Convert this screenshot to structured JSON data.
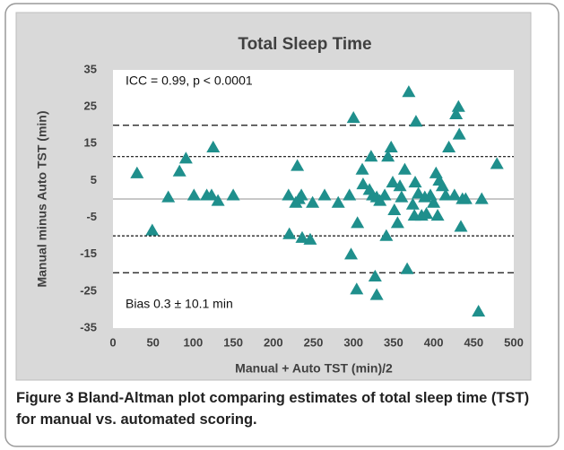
{
  "chart_data": {
    "type": "scatter",
    "title": "Total Sleep Time",
    "x_label": "Manual + Auto TST (min)/2",
    "y_label": "Manual minus Auto TST (min)",
    "annotations": [
      "ICC = 0.99, p < 0.0001",
      "Bias 0.3 ± 10.1 min"
    ],
    "xlim": [
      0,
      500
    ],
    "ylim": [
      -35,
      35
    ],
    "xticks": [
      0,
      50,
      100,
      150,
      200,
      250,
      300,
      350,
      400,
      450,
      500
    ],
    "yticks": [
      -35,
      -25,
      -15,
      -5,
      5,
      15,
      25,
      35
    ],
    "reference_lines": [
      {
        "value": 20,
        "style": "long-dash"
      },
      {
        "value": 11.5,
        "style": "short-dash"
      },
      {
        "value": 0,
        "style": "solid"
      },
      {
        "value": -10,
        "style": "short-dash"
      },
      {
        "value": -20,
        "style": "long-dash"
      }
    ],
    "series": [
      {
        "color": "#1f8f8c",
        "x": [
          30,
          49,
          69,
          83,
          91,
          101,
          117,
          123,
          125,
          131,
          150,
          219,
          220,
          236,
          246,
          230,
          228,
          232,
          235,
          249,
          264,
          281,
          295,
          297,
          300,
          304,
          305,
          311,
          312,
          320,
          322,
          324,
          329,
          327,
          329,
          333,
          339,
          341,
          343,
          347,
          349,
          351,
          355,
          358,
          360,
          364,
          367,
          369,
          374,
          376,
          377,
          378,
          381,
          385,
          389,
          391,
          396,
          400,
          403,
          405,
          407,
          411,
          415,
          419,
          426,
          428,
          431,
          432,
          434,
          436,
          440,
          460,
          456,
          479
        ],
        "values": [
          7,
          -8.5,
          0.5,
          7.5,
          11,
          1,
          1,
          1,
          14,
          -0.5,
          1,
          1,
          -9.5,
          -10.5,
          -11,
          9,
          -1,
          0,
          1,
          -1,
          1,
          -1,
          1,
          -15,
          22,
          -24.5,
          -6.5,
          8,
          4,
          2.5,
          11.5,
          1,
          0.5,
          -21,
          -26,
          -0.5,
          1,
          -10,
          11.5,
          14,
          4.5,
          -3,
          -6.5,
          3.5,
          0.5,
          8,
          -19,
          29,
          -1.5,
          -4.5,
          4.5,
          21,
          1.5,
          -4.5,
          0.5,
          -4,
          1,
          -1,
          7,
          -4.5,
          5,
          3.5,
          1,
          14,
          1,
          23,
          25,
          17.5,
          -7.5,
          0,
          0,
          0,
          -30.5,
          9.5
        ]
      }
    ]
  },
  "caption": {
    "label": "Figure 3",
    "text": "Bland-Altman plot comparing estimates of total sleep time (TST) for manual vs. automated scoring."
  }
}
